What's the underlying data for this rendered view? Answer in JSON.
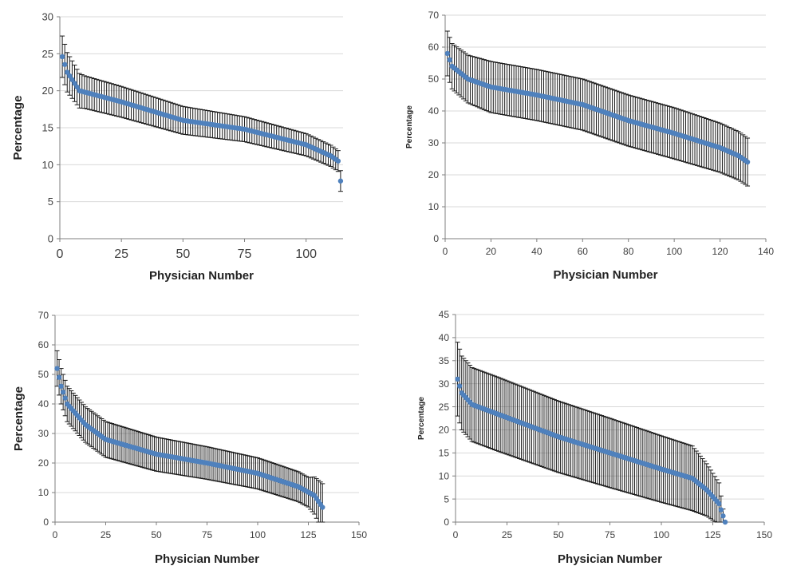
{
  "colors": {
    "marker": "#4F81BD",
    "errorbar": "#1a1a1a",
    "grid": "#d9d9d9",
    "axis": "#7f7f7f"
  },
  "chart_data": [
    {
      "type": "scatter",
      "title": "",
      "xlabel": "Physician Number",
      "ylabel": "Percentage",
      "xlim": [
        0,
        115
      ],
      "ylim": [
        0,
        30
      ],
      "xticks": [
        0,
        25,
        50,
        75,
        100
      ],
      "yticks": [
        0,
        5,
        10,
        15,
        20,
        25,
        30
      ],
      "grid": "horizontal",
      "n_points": 114,
      "series": [
        {
          "profile": [
            [
              1,
              24.6
            ],
            [
              3,
              22.5
            ],
            [
              8,
              20
            ],
            [
              25,
              18.5
            ],
            [
              50,
              16
            ],
            [
              75,
              14.8
            ],
            [
              100,
              12.7
            ],
            [
              110,
              11.2
            ],
            [
              113,
              10.5
            ],
            [
              114,
              7.8
            ]
          ],
          "error_half_width": [
            [
              1,
              2.8
            ],
            [
              10,
              2.2
            ],
            [
              60,
              1.8
            ],
            [
              100,
              1.5
            ],
            [
              114,
              1.4
            ]
          ]
        }
      ]
    },
    {
      "type": "scatter",
      "title": "",
      "xlabel": "Physician Number",
      "ylabel": "Percentage",
      "xlim": [
        0,
        140
      ],
      "ylim": [
        0,
        70
      ],
      "xticks": [
        0,
        20,
        40,
        60,
        80,
        100,
        120,
        140
      ],
      "yticks": [
        0,
        10,
        20,
        30,
        40,
        50,
        60,
        70
      ],
      "grid": "horizontal",
      "n_points": 132,
      "series": [
        {
          "profile": [
            [
              1,
              58
            ],
            [
              3,
              54
            ],
            [
              10,
              50
            ],
            [
              20,
              47.5
            ],
            [
              40,
              45
            ],
            [
              60,
              42
            ],
            [
              80,
              37
            ],
            [
              100,
              33
            ],
            [
              120,
              28.5
            ],
            [
              128,
              26
            ],
            [
              132,
              24
            ]
          ],
          "error_half_width": [
            [
              1,
              7
            ],
            [
              20,
              8
            ],
            [
              60,
              8
            ],
            [
              100,
              8
            ],
            [
              132,
              7.5
            ]
          ]
        }
      ]
    },
    {
      "type": "scatter",
      "title": "",
      "xlabel": "Physician Number",
      "ylabel": "Percentage",
      "xlim": [
        0,
        150
      ],
      "ylim": [
        0,
        70
      ],
      "xticks": [
        0,
        25,
        50,
        75,
        100,
        125,
        150
      ],
      "yticks": [
        0,
        10,
        20,
        30,
        40,
        50,
        60,
        70
      ],
      "grid": "horizontal",
      "n_points": 132,
      "series": [
        {
          "profile": [
            [
              1,
              52
            ],
            [
              3,
              46
            ],
            [
              6,
              40
            ],
            [
              15,
              33
            ],
            [
              25,
              28
            ],
            [
              50,
              23
            ],
            [
              75,
              20
            ],
            [
              100,
              16.5
            ],
            [
              120,
              12
            ],
            [
              128,
              9
            ],
            [
              132,
              5
            ]
          ],
          "error_half_width": [
            [
              1,
              6
            ],
            [
              25,
              6
            ],
            [
              75,
              5.5
            ],
            [
              125,
              5
            ],
            [
              132,
              8
            ]
          ]
        }
      ]
    },
    {
      "type": "scatter",
      "title": "",
      "xlabel": "Physician Number",
      "ylabel": "Percentage",
      "xlim": [
        0,
        150
      ],
      "ylim": [
        0,
        45
      ],
      "xticks": [
        0,
        25,
        50,
        75,
        100,
        125,
        150
      ],
      "yticks": [
        0,
        5,
        10,
        15,
        20,
        25,
        30,
        35,
        40,
        45
      ],
      "grid": "horizontal",
      "n_points": 131,
      "series": [
        {
          "profile": [
            [
              1,
              31
            ],
            [
              3,
              28
            ],
            [
              8,
              25.5
            ],
            [
              20,
              23.5
            ],
            [
              50,
              18.5
            ],
            [
              75,
              15
            ],
            [
              100,
              11.5
            ],
            [
              115,
              9.5
            ],
            [
              122,
              7
            ],
            [
              128,
              4
            ],
            [
              131,
              0
            ]
          ],
          "error_half_width": [
            [
              1,
              8
            ],
            [
              20,
              8
            ],
            [
              75,
              7.5
            ],
            [
              115,
              7
            ],
            [
              128,
              4.5
            ],
            [
              131,
              0
            ]
          ]
        }
      ]
    }
  ]
}
